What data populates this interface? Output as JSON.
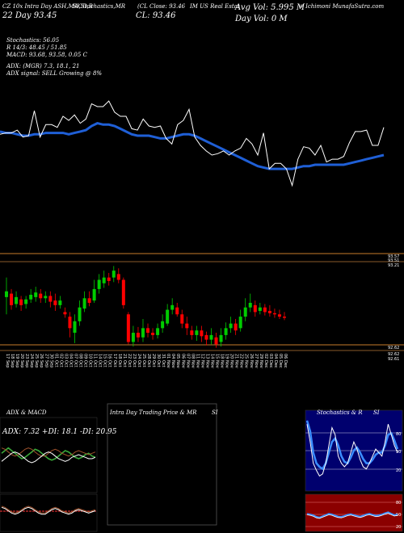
{
  "header": {
    "line1": "CZ 10x Intra Day ASH,MACD,B",
    "stochrsi": "SI,Stochastics,MR",
    "close_price": "(CL Close: 93.46",
    "company": "IM US Real Estat",
    "avg_vol": "Avg Vol: 5.995  M",
    "munafa": "+ Ichimoni MunafaSutra.com",
    "day_line": "22 Day    93.45",
    "cl_big": "CL: 93.46",
    "day_vol": "Day Vol: 0   M"
  },
  "indicators": {
    "stochastics": "Stochastics: 56.05",
    "r_line": "R  14/3: 48.45 / 51.85",
    "macd": "MACD: 93.68,  93.58,  0.05  C",
    "adx": "ADX:                (MGR) 7.3,  18.1,  21",
    "adx_signal": "ADX  signal: SELL  Growing  @ 8%"
  },
  "price_labels": {
    "top1": "93.57",
    "top2": "93.51",
    "top3": "93.21",
    "bot1": "92.62",
    "bot2": "92.62",
    "bot3": "92.61"
  },
  "panels": {
    "adx_title": "ADX  & MACD",
    "adx_values": "ADX: 7.32  +DI: 18.1  -DI: 20.95",
    "intraday_title": "Intra  Day Trading Price  & MR",
    "intraday_si": "SI",
    "stoch_title": "Stochastics & R",
    "stoch_si": "SI",
    "stoch_levels": [
      "80",
      "50",
      "20"
    ],
    "rsi_levels": [
      "80",
      "50",
      "20"
    ]
  },
  "colors": {
    "up": "#00cc00",
    "down": "#ff0000",
    "ma": "#1f5fd6",
    "orange": "#c77b2a"
  },
  "chart_data": [
    {
      "type": "line",
      "series": [
        {
          "values": [
            73,
            74,
            74,
            76,
            71,
            72,
            90,
            71,
            80,
            80,
            78,
            86,
            83,
            87,
            81,
            84,
            95,
            93,
            93,
            97,
            89,
            86,
            86,
            77,
            76,
            84,
            79,
            78,
            79,
            70,
            66,
            80,
            83,
            91,
            71,
            65,
            61,
            58,
            59,
            61,
            58,
            61,
            63,
            70,
            66,
            58,
            74,
            48,
            52,
            52,
            48,
            36,
            55,
            64,
            63,
            58,
            65,
            53,
            55,
            55,
            57,
            67,
            75,
            75,
            76,
            65,
            65,
            78
          ]
        },
        {
          "values": [
            75,
            74,
            74,
            73,
            72,
            72,
            73,
            73,
            74,
            74,
            74,
            74,
            73,
            74,
            75,
            76,
            79,
            81,
            80,
            80,
            79,
            77,
            75,
            73,
            72,
            72,
            72,
            71,
            70,
            70,
            71,
            72,
            73,
            73,
            72,
            70,
            68,
            66,
            64,
            62,
            60,
            58,
            56,
            54,
            52,
            50,
            49,
            48,
            48,
            48,
            48,
            48,
            49,
            50,
            50,
            51,
            51,
            51,
            51,
            51,
            51,
            52,
            53,
            54,
            55,
            56,
            57,
            58
          ]
        }
      ]
    },
    {
      "type": "bar",
      "categories": [
        "17 Sep",
        "18 Sep",
        "19 Sep",
        "20 Sep",
        "23 Sep",
        "24 Sep",
        "25 Sep",
        "26 Sep",
        "27 Sep",
        "30 Sep",
        "01 Oct",
        "02 Oct",
        "03 Oct",
        "04 Oct",
        "07 Oct",
        "08 Oct",
        "09 Oct",
        "10 Oct",
        "11 Oct",
        "14 Oct",
        "15 Oct",
        "16 Oct",
        "17 Oct",
        "18 Oct",
        "21 Oct",
        "22 Oct",
        "23 Oct",
        "24 Oct",
        "25 Oct",
        "28 Oct",
        "29 Oct",
        "30 Oct",
        "31 Oct",
        "01 Nov",
        "04 Nov",
        "05 Nov",
        "06 Nov",
        "07 Nov",
        "08 Nov",
        "11 Nov",
        "12 Nov",
        "13 Nov",
        "14 Nov",
        "15 Nov",
        "18 Nov",
        "19 Nov",
        "20 Nov",
        "21 Nov",
        "22 Nov",
        "25 Nov",
        "26 Nov",
        "27 Nov",
        "29 Nov",
        "02 Dec",
        "03 Dec",
        "04 Dec",
        "05 Dec",
        "06 Dec"
      ],
      "candles": [
        {
          "o": 93.05,
          "c": 93.1,
          "h": 93.22,
          "l": 92.9
        },
        {
          "o": 93.08,
          "c": 92.98,
          "h": 93.12,
          "l": 92.94
        },
        {
          "o": 92.99,
          "c": 93.05,
          "h": 93.1,
          "l": 92.96
        },
        {
          "o": 93.03,
          "c": 92.98,
          "h": 93.06,
          "l": 92.93
        },
        {
          "o": 92.99,
          "c": 93.03,
          "h": 93.06,
          "l": 92.95
        },
        {
          "o": 93.03,
          "c": 93.07,
          "h": 93.12,
          "l": 93.0
        },
        {
          "o": 93.05,
          "c": 93.09,
          "h": 93.14,
          "l": 93.01
        },
        {
          "o": 93.08,
          "c": 93.04,
          "h": 93.12,
          "l": 93.0
        },
        {
          "o": 93.04,
          "c": 93.06,
          "h": 93.1,
          "l": 93.0
        },
        {
          "o": 93.06,
          "c": 93.01,
          "h": 93.1,
          "l": 92.96
        },
        {
          "o": 93.02,
          "c": 92.98,
          "h": 93.08,
          "l": 92.93
        },
        {
          "o": 92.98,
          "c": 93.02,
          "h": 93.06,
          "l": 92.95
        },
        {
          "o": 92.92,
          "c": 92.9,
          "h": 92.96,
          "l": 92.87
        },
        {
          "o": 92.88,
          "c": 92.78,
          "h": 92.92,
          "l": 92.7
        },
        {
          "o": 92.74,
          "c": 92.84,
          "h": 92.9,
          "l": 92.65
        },
        {
          "o": 92.84,
          "c": 92.96,
          "h": 93.02,
          "l": 92.8
        },
        {
          "o": 92.95,
          "c": 93.04,
          "h": 93.1,
          "l": 92.92
        },
        {
          "o": 93.04,
          "c": 93.0,
          "h": 93.1,
          "l": 92.97
        },
        {
          "o": 93.02,
          "c": 93.12,
          "h": 93.2,
          "l": 93.0
        },
        {
          "o": 93.12,
          "c": 93.2,
          "h": 93.25,
          "l": 93.08
        },
        {
          "o": 93.17,
          "c": 93.22,
          "h": 93.28,
          "l": 93.13
        },
        {
          "o": 93.22,
          "c": 93.19,
          "h": 93.26,
          "l": 93.15
        },
        {
          "o": 93.22,
          "c": 93.28,
          "h": 93.32,
          "l": 93.18
        },
        {
          "o": 93.25,
          "c": 93.2,
          "h": 93.3,
          "l": 93.17
        },
        {
          "o": 93.2,
          "c": 92.98,
          "h": 93.22,
          "l": 92.95
        },
        {
          "o": 92.9,
          "c": 92.66,
          "h": 92.92,
          "l": 92.64
        },
        {
          "o": 92.66,
          "c": 92.74,
          "h": 92.8,
          "l": 92.62
        },
        {
          "o": 92.74,
          "c": 92.7,
          "h": 92.79,
          "l": 92.66
        },
        {
          "o": 92.7,
          "c": 92.78,
          "h": 92.86,
          "l": 92.66
        },
        {
          "o": 92.78,
          "c": 92.74,
          "h": 92.82,
          "l": 92.7
        },
        {
          "o": 92.74,
          "c": 92.72,
          "h": 92.78,
          "l": 92.68
        },
        {
          "o": 92.72,
          "c": 92.78,
          "h": 92.82,
          "l": 92.69
        },
        {
          "o": 92.78,
          "c": 92.84,
          "h": 92.9,
          "l": 92.74
        },
        {
          "o": 92.82,
          "c": 92.94,
          "h": 92.99,
          "l": 92.8
        },
        {
          "o": 92.94,
          "c": 92.98,
          "h": 93.04,
          "l": 92.9
        },
        {
          "o": 92.96,
          "c": 92.9,
          "h": 93.0,
          "l": 92.88
        },
        {
          "o": 92.9,
          "c": 92.82,
          "h": 92.94,
          "l": 92.78
        },
        {
          "o": 92.82,
          "c": 92.78,
          "h": 92.88,
          "l": 92.72
        },
        {
          "o": 92.76,
          "c": 92.72,
          "h": 92.8,
          "l": 92.68
        },
        {
          "o": 92.72,
          "c": 92.76,
          "h": 92.8,
          "l": 92.67
        },
        {
          "o": 92.76,
          "c": 92.71,
          "h": 92.8,
          "l": 92.66
        },
        {
          "o": 92.72,
          "c": 92.68,
          "h": 92.75,
          "l": 92.63
        },
        {
          "o": 92.68,
          "c": 92.72,
          "h": 92.78,
          "l": 92.64
        },
        {
          "o": 92.7,
          "c": 92.64,
          "h": 92.74,
          "l": 92.61
        },
        {
          "o": 92.66,
          "c": 92.72,
          "h": 92.78,
          "l": 92.62
        },
        {
          "o": 92.72,
          "c": 92.78,
          "h": 92.83,
          "l": 92.68
        },
        {
          "o": 92.78,
          "c": 92.82,
          "h": 92.88,
          "l": 92.74
        },
        {
          "o": 92.82,
          "c": 92.76,
          "h": 92.86,
          "l": 92.72
        },
        {
          "o": 92.78,
          "c": 92.88,
          "h": 92.94,
          "l": 92.75
        },
        {
          "o": 92.88,
          "c": 92.96,
          "h": 93.04,
          "l": 92.84
        },
        {
          "o": 92.96,
          "c": 93.0,
          "h": 93.08,
          "l": 92.92
        },
        {
          "o": 92.98,
          "c": 92.92,
          "h": 93.02,
          "l": 92.88
        },
        {
          "o": 92.93,
          "c": 92.96,
          "h": 93.0,
          "l": 92.9
        },
        {
          "o": 92.96,
          "c": 92.92,
          "h": 92.99,
          "l": 92.89
        },
        {
          "o": 92.93,
          "c": 92.91,
          "h": 92.98,
          "l": 92.88
        },
        {
          "o": 92.91,
          "c": 92.9,
          "h": 92.95,
          "l": 92.87
        },
        {
          "o": 92.9,
          "c": 92.88,
          "h": 92.94,
          "l": 92.86
        },
        {
          "o": 92.88,
          "c": 92.87,
          "h": 92.92,
          "l": 92.85
        }
      ],
      "ylim": [
        92.6,
        93.4
      ]
    },
    {
      "type": "line",
      "series": [
        {
          "values": [
            18,
            20,
            22,
            20,
            18,
            16,
            14,
            15,
            17,
            19,
            21,
            20,
            18,
            16,
            14,
            13,
            14,
            16,
            18,
            20,
            19,
            17,
            15,
            14,
            15,
            17,
            18,
            16,
            15
          ]
        },
        {
          "values": [
            22,
            21,
            19,
            17,
            16,
            17,
            19,
            21,
            22,
            21,
            19,
            17,
            16,
            16,
            18,
            20,
            21,
            20,
            18,
            17,
            16,
            17,
            19,
            20,
            19,
            18,
            17,
            18,
            19
          ]
        },
        {
          "values": [
            12,
            14,
            16,
            18,
            19,
            18,
            16,
            14,
            12,
            11,
            12,
            14,
            16,
            18,
            19,
            18,
            16,
            14,
            13,
            12,
            13,
            15,
            16,
            17,
            16,
            15,
            14,
            14,
            15
          ]
        }
      ]
    },
    {
      "type": "line",
      "series": [
        {
          "values": [
            85,
            60,
            30,
            20,
            12,
            15,
            30,
            55,
            80,
            70,
            40,
            30,
            25,
            30,
            45,
            60,
            50,
            35,
            25,
            22,
            30,
            40,
            50,
            45,
            40,
            60,
            85,
            70,
            55,
            45
          ]
        },
        {
          "values": [
            90,
            75,
            45,
            30,
            25,
            22,
            30,
            45,
            60,
            65,
            55,
            40,
            32,
            30,
            38,
            48,
            52,
            45,
            36,
            30,
            30,
            35,
            42,
            45,
            45,
            55,
            70,
            72,
            62,
            50
          ]
        }
      ],
      "ylim": [
        0,
        100
      ]
    }
  ]
}
